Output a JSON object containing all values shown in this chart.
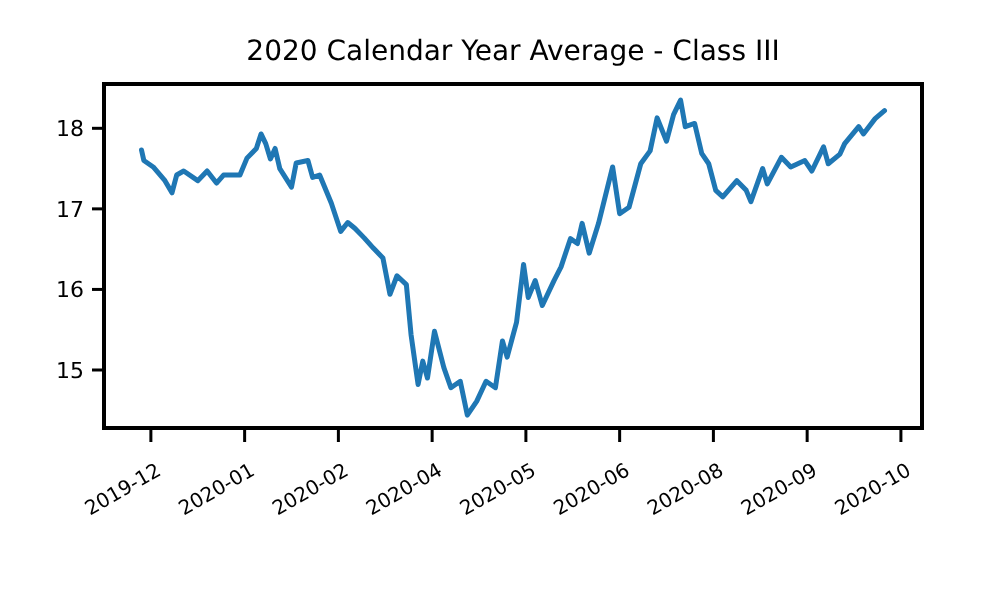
{
  "chart_data": {
    "type": "line",
    "title": "2020 Calendar Year Average - Class III",
    "x": [
      "2019-12-06",
      "2019-12-07",
      "2019-12-11",
      "2019-12-16",
      "2019-12-19",
      "2019-12-21",
      "2019-12-24",
      "2019-12-30",
      "2020-01-03",
      "2020-01-07",
      "2020-01-10",
      "2020-01-17",
      "2020-01-20",
      "2020-01-24",
      "2020-01-26",
      "2020-01-28",
      "2020-01-30",
      "2020-02-01",
      "2020-02-03",
      "2020-02-08",
      "2020-02-10",
      "2020-02-15",
      "2020-02-17",
      "2020-02-20",
      "2020-02-25",
      "2020-02-29",
      "2020-03-03",
      "2020-03-06",
      "2020-03-10",
      "2020-03-14",
      "2020-03-18",
      "2020-03-21",
      "2020-03-24",
      "2020-03-28",
      "2020-03-30",
      "2020-04-02",
      "2020-04-04",
      "2020-04-06",
      "2020-04-09",
      "2020-04-13",
      "2020-04-16",
      "2020-04-20",
      "2020-04-23",
      "2020-04-27",
      "2020-05-01",
      "2020-05-05",
      "2020-05-08",
      "2020-05-10",
      "2020-05-14",
      "2020-05-17",
      "2020-05-19",
      "2020-05-22",
      "2020-05-25",
      "2020-05-30",
      "2020-06-02",
      "2020-06-06",
      "2020-06-09",
      "2020-06-11",
      "2020-06-14",
      "2020-06-18",
      "2020-06-24",
      "2020-06-27",
      "2020-07-01",
      "2020-07-06",
      "2020-07-10",
      "2020-07-13",
      "2020-07-17",
      "2020-07-20",
      "2020-07-23",
      "2020-07-25",
      "2020-07-29",
      "2020-08-01",
      "2020-08-04",
      "2020-08-07",
      "2020-08-10",
      "2020-08-16",
      "2020-08-20",
      "2020-08-22",
      "2020-08-27",
      "2020-08-29",
      "2020-09-04",
      "2020-09-08",
      "2020-09-14",
      "2020-09-17",
      "2020-09-22",
      "2020-09-24",
      "2020-09-29",
      "2020-10-01",
      "2020-10-07",
      "2020-10-09",
      "2020-10-14",
      "2020-10-18"
    ],
    "series": [
      {
        "color": "#1f77b4",
        "values": [
          17.73,
          17.6,
          17.52,
          17.35,
          17.2,
          17.42,
          17.47,
          17.35,
          17.47,
          17.32,
          17.42,
          17.42,
          17.63,
          17.75,
          17.93,
          17.81,
          17.62,
          17.75,
          17.5,
          17.27,
          17.57,
          17.6,
          17.39,
          17.42,
          17.07,
          16.72,
          16.83,
          16.76,
          16.64,
          16.51,
          16.39,
          15.94,
          16.17,
          16.06,
          15.44,
          14.82,
          15.11,
          14.9,
          15.48,
          15.03,
          14.78,
          14.86,
          14.44,
          14.61,
          14.86,
          14.78,
          15.36,
          15.16,
          15.59,
          16.31,
          15.9,
          16.11,
          15.8,
          16.11,
          16.28,
          16.63,
          16.57,
          16.82,
          16.45,
          16.82,
          17.52,
          16.94,
          17.02,
          17.56,
          17.72,
          18.13,
          17.84,
          18.17,
          18.35,
          18.02,
          18.06,
          17.69,
          17.56,
          17.23,
          17.15,
          17.35,
          17.23,
          17.09,
          17.5,
          17.31,
          17.64,
          17.52,
          17.6,
          17.47,
          17.77,
          17.56,
          17.68,
          17.81,
          18.02,
          17.93,
          18.12,
          18.22
        ]
      }
    ],
    "xlim": [
      "2019-11-20",
      "2020-11-03"
    ],
    "xticks": [
      {
        "value": "2019-12-10",
        "label": "2019-12"
      },
      {
        "value": "2020-01-19",
        "label": "2020-01"
      },
      {
        "value": "2020-02-28",
        "label": "2020-02"
      },
      {
        "value": "2020-04-08",
        "label": "2020-04"
      },
      {
        "value": "2020-05-18",
        "label": "2020-05"
      },
      {
        "value": "2020-06-27",
        "label": "2020-06"
      },
      {
        "value": "2020-08-06",
        "label": "2020-08"
      },
      {
        "value": "2020-09-15",
        "label": "2020-09"
      },
      {
        "value": "2020-10-25",
        "label": "2020-10"
      }
    ],
    "ylim": [
      14.28,
      18.55
    ],
    "yticks": [
      15,
      16,
      17,
      18
    ],
    "grid": false,
    "line_style": "solid",
    "marker": "none"
  }
}
